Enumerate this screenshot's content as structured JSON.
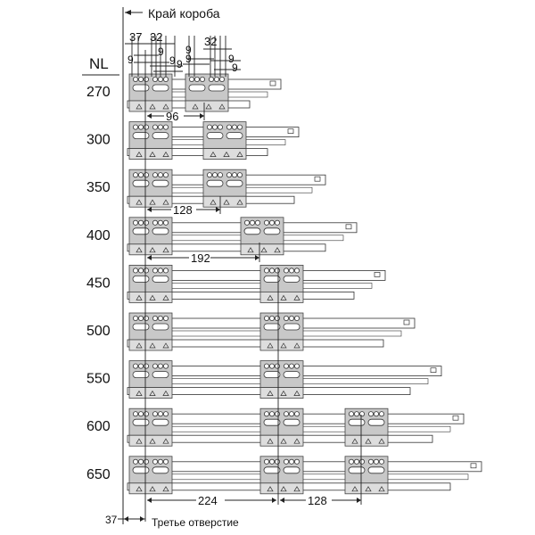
{
  "header": {
    "edge_label": "Край короба",
    "nl_label": "NL"
  },
  "top_dims": {
    "d37": "37",
    "d32a": "32",
    "d32b": "32",
    "nine": "9"
  },
  "rows": [
    {
      "nl": "270",
      "second": "96"
    },
    {
      "nl": "300"
    },
    {
      "nl": "350",
      "second": "128"
    },
    {
      "nl": "400",
      "second": "192"
    },
    {
      "nl": "450"
    },
    {
      "nl": "500"
    },
    {
      "nl": "550"
    },
    {
      "nl": "600"
    },
    {
      "nl": "650"
    }
  ],
  "bottom": {
    "d224": "224",
    "d128": "128",
    "d37": "37",
    "third_hole_label": "Третье отверстие"
  },
  "colors": {
    "bracket": "#c8c8c8",
    "line": "#222222",
    "rail": "#ffffff"
  }
}
